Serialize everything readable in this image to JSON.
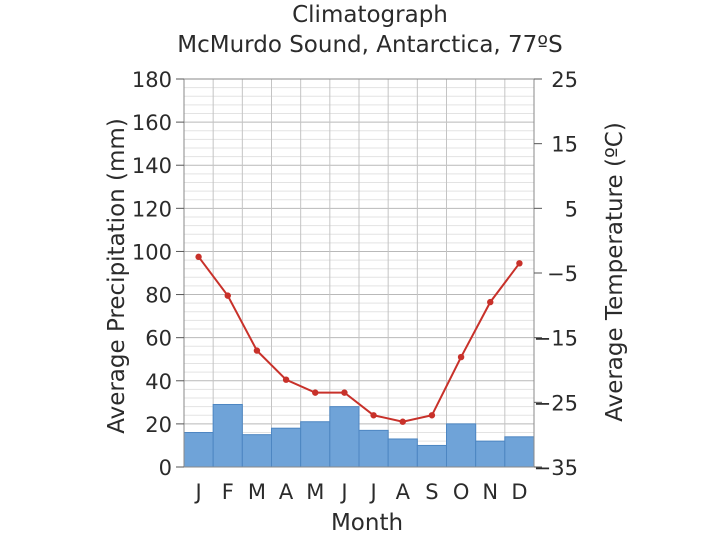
{
  "chart_data": {
    "type": "bar+line",
    "title": "Climatograph",
    "subtitle": "McMurdo Sound, Antarctica, 77ºS",
    "xlabel": "Month",
    "ylabel_left": "Average Precipitation (mm)",
    "ylabel_right": "Average Temperature (ºC)",
    "categories": [
      "J",
      "F",
      "M",
      "A",
      "M",
      "J",
      "J",
      "A",
      "S",
      "O",
      "N",
      "D"
    ],
    "ylim_left": [
      0,
      180
    ],
    "yticks_left": [
      "0",
      "20",
      "40",
      "60",
      "80",
      "100",
      "120",
      "140",
      "160",
      "180"
    ],
    "ylim_right": [
      -35,
      25
    ],
    "yticks_right": [
      "−35",
      "−25",
      "−15",
      "−5",
      "5",
      "15",
      "25"
    ],
    "grid": true,
    "series": [
      {
        "type": "bar",
        "axis": "left",
        "color": "#6fa3d8",
        "edge": "#4d86c2",
        "values": [
          16,
          29,
          15,
          18,
          21,
          28,
          17,
          13,
          10,
          20,
          12,
          14
        ]
      },
      {
        "type": "line",
        "axis": "right",
        "color": "#c8312a",
        "values": [
          -2.5,
          -8.5,
          -17,
          -21.5,
          -23.5,
          -23.5,
          -27,
          -28,
          -27,
          -18,
          -9.5,
          -3.5
        ]
      }
    ]
  }
}
